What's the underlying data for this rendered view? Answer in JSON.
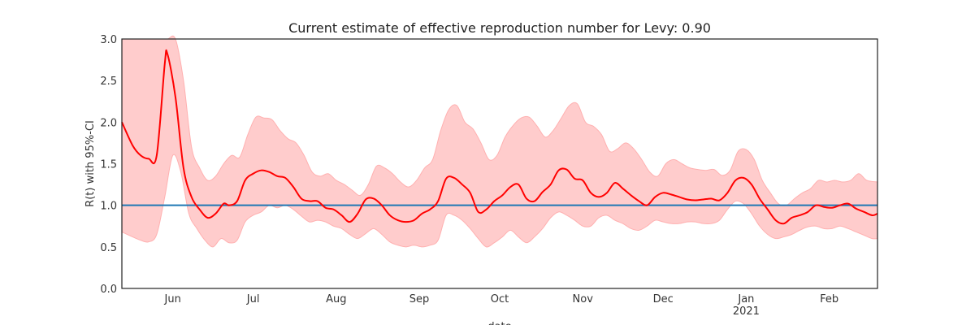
{
  "chart_data": {
    "type": "line",
    "title": "Current estimate of effective reproduction number for Levy: 0.90",
    "ylabel": "R(t) with 95%-CI",
    "xlabel": "date",
    "ylim": [
      0,
      3
    ],
    "yticks": [
      "0.0",
      "0.5",
      "1.0",
      "1.5",
      "2.0",
      "2.5",
      "3.0"
    ],
    "x_start": "2020-05-13",
    "x_end": "2021-02-19",
    "xticks": [
      {
        "date": "2020-06-01",
        "label": "Jun",
        "sublabel": ""
      },
      {
        "date": "2020-07-01",
        "label": "Jul",
        "sublabel": ""
      },
      {
        "date": "2020-08-01",
        "label": "Aug",
        "sublabel": ""
      },
      {
        "date": "2020-09-01",
        "label": "Sep",
        "sublabel": ""
      },
      {
        "date": "2020-10-01",
        "label": "Oct",
        "sublabel": ""
      },
      {
        "date": "2020-11-01",
        "label": "Nov",
        "sublabel": ""
      },
      {
        "date": "2020-12-01",
        "label": "Dec",
        "sublabel": ""
      },
      {
        "date": "2021-01-01",
        "label": "Jan",
        "sublabel": "2021"
      },
      {
        "date": "2021-02-01",
        "label": "Feb",
        "sublabel": ""
      }
    ],
    "reference_line": {
      "y": 1.0,
      "color": "#1f77b4"
    },
    "colors": {
      "line": "#ff0000",
      "band": "#ffcccc",
      "band_edge": "#ffb0b0"
    },
    "grid": false,
    "series": [
      {
        "role": "estimate",
        "x": [
          "2020-05-13",
          "2020-05-17",
          "2020-05-20",
          "2020-05-23",
          "2020-05-26",
          "2020-05-29",
          "2020-05-30",
          "2020-06-02",
          "2020-06-05",
          "2020-06-08",
          "2020-06-11",
          "2020-06-14",
          "2020-06-17",
          "2020-06-20",
          "2020-06-22",
          "2020-06-25",
          "2020-06-28",
          "2020-07-01",
          "2020-07-04",
          "2020-07-07",
          "2020-07-10",
          "2020-07-13",
          "2020-07-16",
          "2020-07-19",
          "2020-07-22",
          "2020-07-25",
          "2020-07-28",
          "2020-07-31",
          "2020-08-03",
          "2020-08-06",
          "2020-08-09",
          "2020-08-12",
          "2020-08-15",
          "2020-08-18",
          "2020-08-21",
          "2020-08-24",
          "2020-08-27",
          "2020-08-30",
          "2020-09-02",
          "2020-09-05",
          "2020-09-08",
          "2020-09-11",
          "2020-09-14",
          "2020-09-17",
          "2020-09-20",
          "2020-09-23",
          "2020-09-26",
          "2020-09-29",
          "2020-10-02",
          "2020-10-05",
          "2020-10-08",
          "2020-10-11",
          "2020-10-14",
          "2020-10-17",
          "2020-10-20",
          "2020-10-23",
          "2020-10-26",
          "2020-10-29",
          "2020-11-01",
          "2020-11-04",
          "2020-11-07",
          "2020-11-10",
          "2020-11-13",
          "2020-11-16",
          "2020-11-19",
          "2020-11-22",
          "2020-11-25",
          "2020-11-28",
          "2020-12-01",
          "2020-12-04",
          "2020-12-07",
          "2020-12-10",
          "2020-12-13",
          "2020-12-16",
          "2020-12-19",
          "2020-12-22",
          "2020-12-25",
          "2020-12-28",
          "2020-12-31",
          "2021-01-03",
          "2021-01-06",
          "2021-01-09",
          "2021-01-12",
          "2021-01-15",
          "2021-01-18",
          "2021-01-21",
          "2021-01-24",
          "2021-01-27",
          "2021-01-30",
          "2021-02-02",
          "2021-02-05",
          "2021-02-08",
          "2021-02-11",
          "2021-02-14",
          "2021-02-17",
          "2021-02-19"
        ],
        "y": [
          2.0,
          1.72,
          1.6,
          1.56,
          1.6,
          2.7,
          2.82,
          2.3,
          1.45,
          1.1,
          0.95,
          0.85,
          0.9,
          1.02,
          1.0,
          1.05,
          1.3,
          1.38,
          1.42,
          1.4,
          1.35,
          1.33,
          1.22,
          1.08,
          1.05,
          1.05,
          0.97,
          0.95,
          0.88,
          0.8,
          0.9,
          1.07,
          1.08,
          1.0,
          0.88,
          0.82,
          0.8,
          0.82,
          0.9,
          0.95,
          1.05,
          1.32,
          1.33,
          1.25,
          1.15,
          0.92,
          0.95,
          1.05,
          1.12,
          1.22,
          1.25,
          1.08,
          1.05,
          1.16,
          1.25,
          1.42,
          1.43,
          1.32,
          1.3,
          1.15,
          1.1,
          1.15,
          1.27,
          1.2,
          1.12,
          1.05,
          1.0,
          1.1,
          1.15,
          1.13,
          1.1,
          1.07,
          1.06,
          1.07,
          1.08,
          1.06,
          1.15,
          1.3,
          1.33,
          1.25,
          1.08,
          0.95,
          0.82,
          0.78,
          0.85,
          0.88,
          0.92,
          1.0,
          0.98,
          0.97,
          1.0,
          1.02,
          0.96,
          0.92,
          0.88,
          0.9
        ]
      },
      {
        "role": "upper",
        "x": [
          "2020-05-13",
          "2020-05-20",
          "2020-05-27",
          "2020-05-30",
          "2020-06-02",
          "2020-06-05",
          "2020-06-08",
          "2020-06-11",
          "2020-06-14",
          "2020-06-17",
          "2020-06-20",
          "2020-06-23",
          "2020-06-26",
          "2020-06-29",
          "2020-07-02",
          "2020-07-05",
          "2020-07-08",
          "2020-07-11",
          "2020-07-14",
          "2020-07-17",
          "2020-07-20",
          "2020-07-23",
          "2020-07-26",
          "2020-07-29",
          "2020-08-01",
          "2020-08-04",
          "2020-08-07",
          "2020-08-10",
          "2020-08-13",
          "2020-08-16",
          "2020-08-19",
          "2020-08-22",
          "2020-08-25",
          "2020-08-28",
          "2020-08-31",
          "2020-09-03",
          "2020-09-06",
          "2020-09-09",
          "2020-09-12",
          "2020-09-15",
          "2020-09-18",
          "2020-09-21",
          "2020-09-24",
          "2020-09-27",
          "2020-09-30",
          "2020-10-03",
          "2020-10-06",
          "2020-10-09",
          "2020-10-12",
          "2020-10-15",
          "2020-10-18",
          "2020-10-21",
          "2020-10-24",
          "2020-10-27",
          "2020-10-30",
          "2020-11-02",
          "2020-11-05",
          "2020-11-08",
          "2020-11-11",
          "2020-11-14",
          "2020-11-17",
          "2020-11-20",
          "2020-11-23",
          "2020-11-26",
          "2020-11-29",
          "2020-12-02",
          "2020-12-05",
          "2020-12-08",
          "2020-12-11",
          "2020-12-14",
          "2020-12-17",
          "2020-12-20",
          "2020-12-23",
          "2020-12-26",
          "2020-12-29",
          "2021-01-01",
          "2021-01-04",
          "2021-01-07",
          "2021-01-10",
          "2021-01-13",
          "2021-01-16",
          "2021-01-19",
          "2021-01-22",
          "2021-01-25",
          "2021-01-28",
          "2021-01-31",
          "2021-02-03",
          "2021-02-06",
          "2021-02-09",
          "2021-02-12",
          "2021-02-15",
          "2021-02-19"
        ],
        "y": [
          3.0,
          3.0,
          3.0,
          3.0,
          3.0,
          2.5,
          1.7,
          1.45,
          1.3,
          1.35,
          1.5,
          1.6,
          1.58,
          1.85,
          2.06,
          2.05,
          2.03,
          1.9,
          1.8,
          1.75,
          1.6,
          1.4,
          1.35,
          1.38,
          1.3,
          1.25,
          1.18,
          1.12,
          1.25,
          1.47,
          1.45,
          1.38,
          1.28,
          1.22,
          1.3,
          1.45,
          1.55,
          1.9,
          2.15,
          2.2,
          2.0,
          1.92,
          1.75,
          1.55,
          1.6,
          1.82,
          1.96,
          2.05,
          2.06,
          1.95,
          1.82,
          1.9,
          2.05,
          2.2,
          2.22,
          2.0,
          1.95,
          1.85,
          1.65,
          1.68,
          1.75,
          1.68,
          1.55,
          1.4,
          1.35,
          1.5,
          1.55,
          1.5,
          1.45,
          1.43,
          1.42,
          1.43,
          1.36,
          1.42,
          1.65,
          1.67,
          1.55,
          1.3,
          1.15,
          1.02,
          1.0,
          1.08,
          1.15,
          1.2,
          1.3,
          1.28,
          1.3,
          1.28,
          1.3,
          1.38,
          1.3,
          1.28
        ]
      },
      {
        "role": "lower",
        "x": [
          "2020-05-13",
          "2020-05-17",
          "2020-05-20",
          "2020-05-23",
          "2020-05-26",
          "2020-05-29",
          "2020-06-01",
          "2020-06-04",
          "2020-06-07",
          "2020-06-10",
          "2020-06-13",
          "2020-06-16",
          "2020-06-19",
          "2020-06-22",
          "2020-06-25",
          "2020-06-28",
          "2020-07-01",
          "2020-07-04",
          "2020-07-07",
          "2020-07-10",
          "2020-07-13",
          "2020-07-16",
          "2020-07-19",
          "2020-07-22",
          "2020-07-25",
          "2020-07-28",
          "2020-07-31",
          "2020-08-03",
          "2020-08-06",
          "2020-08-09",
          "2020-08-12",
          "2020-08-15",
          "2020-08-18",
          "2020-08-21",
          "2020-08-24",
          "2020-08-27",
          "2020-08-30",
          "2020-09-02",
          "2020-09-05",
          "2020-09-08",
          "2020-09-11",
          "2020-09-14",
          "2020-09-17",
          "2020-09-20",
          "2020-09-23",
          "2020-09-26",
          "2020-09-29",
          "2020-10-02",
          "2020-10-05",
          "2020-10-08",
          "2020-10-11",
          "2020-10-14",
          "2020-10-17",
          "2020-10-20",
          "2020-10-23",
          "2020-10-26",
          "2020-10-29",
          "2020-11-01",
          "2020-11-04",
          "2020-11-07",
          "2020-11-10",
          "2020-11-13",
          "2020-11-16",
          "2020-11-19",
          "2020-11-22",
          "2020-11-25",
          "2020-11-28",
          "2020-12-01",
          "2020-12-04",
          "2020-12-07",
          "2020-12-10",
          "2020-12-13",
          "2020-12-16",
          "2020-12-19",
          "2020-12-22",
          "2020-12-25",
          "2020-12-28",
          "2020-12-31",
          "2021-01-03",
          "2021-01-06",
          "2021-01-09",
          "2021-01-12",
          "2021-01-15",
          "2021-01-18",
          "2021-01-21",
          "2021-01-24",
          "2021-01-27",
          "2021-01-30",
          "2021-02-02",
          "2021-02-05",
          "2021-02-08",
          "2021-02-11",
          "2021-02-14",
          "2021-02-17",
          "2021-02-19"
        ],
        "y": [
          0.68,
          0.62,
          0.58,
          0.56,
          0.65,
          1.1,
          1.6,
          1.4,
          0.9,
          0.72,
          0.58,
          0.5,
          0.6,
          0.55,
          0.58,
          0.8,
          0.88,
          0.92,
          1.0,
          0.97,
          1.0,
          0.95,
          0.87,
          0.8,
          0.82,
          0.8,
          0.75,
          0.72,
          0.65,
          0.6,
          0.66,
          0.72,
          0.65,
          0.56,
          0.52,
          0.5,
          0.52,
          0.5,
          0.52,
          0.58,
          0.88,
          0.88,
          0.82,
          0.72,
          0.6,
          0.5,
          0.55,
          0.62,
          0.7,
          0.62,
          0.55,
          0.62,
          0.72,
          0.85,
          0.92,
          0.88,
          0.82,
          0.75,
          0.75,
          0.85,
          0.88,
          0.82,
          0.78,
          0.72,
          0.7,
          0.75,
          0.82,
          0.8,
          0.78,
          0.78,
          0.8,
          0.8,
          0.78,
          0.78,
          0.82,
          0.95,
          1.05,
          1.02,
          0.9,
          0.75,
          0.65,
          0.6,
          0.62,
          0.65,
          0.7,
          0.74,
          0.75,
          0.72,
          0.72,
          0.75,
          0.72,
          0.68,
          0.64,
          0.6,
          0.6
        ]
      }
    ]
  }
}
